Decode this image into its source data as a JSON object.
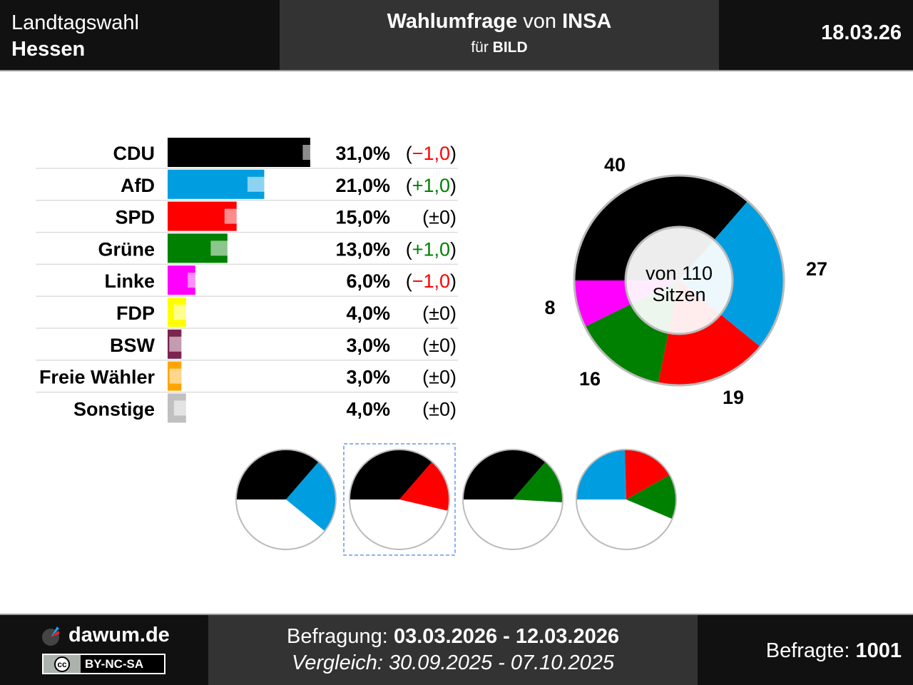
{
  "header": {
    "election_line1": "Landtagswahl",
    "election_line2": "Hessen",
    "title_bold1": "Wahlumfrage",
    "title_normal": " von ",
    "title_bold2": "INSA",
    "sub_normal": "für ",
    "sub_bold": "BILD",
    "date": "18.03.26"
  },
  "footer": {
    "site": "dawum.de",
    "license": "BY-NC-SA",
    "survey_label": "Befragung: ",
    "survey_period": "03.03.2026 - 12.03.2026",
    "compare_label": "Vergleich: ",
    "compare_period": "30.09.2025 - 07.10.2025",
    "respondents_label": "Befragte: ",
    "respondents": "1001"
  },
  "chart_data": [
    {
      "type": "bar",
      "categories": [
        "CDU",
        "AfD",
        "SPD",
        "Grüne",
        "Linke",
        "FDP",
        "BSW",
        "Freie Wähler",
        "Sonstige"
      ],
      "values": [
        31,
        21,
        15,
        13,
        6,
        4,
        3,
        3,
        4
      ],
      "previous": [
        32,
        20,
        15,
        12,
        7,
        4,
        3,
        3,
        4
      ],
      "value_labels": [
        "31,0%",
        "21,0%",
        "15,0%",
        "13,0%",
        "6,0%",
        "4,0%",
        "3,0%",
        "3,0%",
        "4,0%"
      ],
      "change_labels": [
        "(−1,0)",
        "(+1,0)",
        "(±0)",
        "(+1,0)",
        "(−1,0)",
        "(±0)",
        "(±0)",
        "(±0)",
        "(±0)"
      ],
      "colors": [
        "#000000",
        "#009ee0",
        "#ff0000",
        "#008000",
        "#ff00ff",
        "#ffff00",
        "#7b2450",
        "#ffa500",
        "#c0c0c0"
      ],
      "change_colors": {
        "neg": "#ff0000",
        "pos": "#008000",
        "zero": "#000000"
      }
    },
    {
      "type": "pie",
      "subtype": "donut-seats",
      "categories": [
        "CDU",
        "AfD",
        "SPD",
        "Grüne",
        "Linke"
      ],
      "values": [
        40,
        27,
        19,
        16,
        8
      ],
      "colors": [
        "#000000",
        "#009ee0",
        "#ff0000",
        "#008000",
        "#ff00ff"
      ],
      "center_line1": "von 110",
      "center_line2": "Sitzen",
      "total": 110
    },
    {
      "type": "pie",
      "subtype": "coalitions",
      "total": 110,
      "selected": 1,
      "coalitions": [
        {
          "parties": [
            "CDU",
            "AfD"
          ],
          "values": [
            40,
            27
          ],
          "colors": [
            "#000000",
            "#009ee0"
          ]
        },
        {
          "parties": [
            "CDU",
            "SPD"
          ],
          "values": [
            40,
            19
          ],
          "colors": [
            "#000000",
            "#ff0000"
          ]
        },
        {
          "parties": [
            "CDU",
            "Grüne"
          ],
          "values": [
            40,
            16
          ],
          "colors": [
            "#000000",
            "#008000"
          ]
        },
        {
          "parties": [
            "AfD",
            "SPD",
            "Grüne"
          ],
          "values": [
            27,
            19,
            16
          ],
          "colors": [
            "#009ee0",
            "#ff0000",
            "#008000"
          ]
        }
      ]
    }
  ]
}
